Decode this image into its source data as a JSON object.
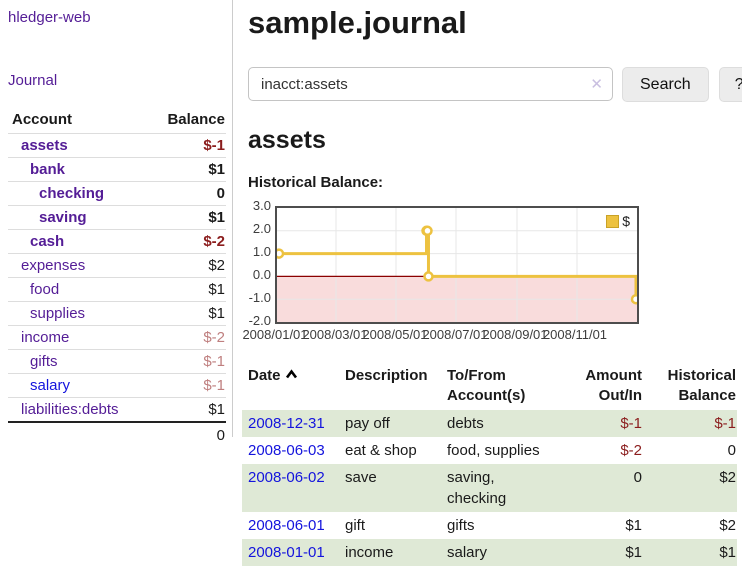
{
  "app": {
    "title": "hledger-web"
  },
  "sidebar": {
    "journal_link": "Journal",
    "accounts_table": {
      "headers": {
        "account": "Account",
        "balance": "Balance"
      },
      "rows": [
        {
          "account": "assets",
          "balance": "$-1"
        },
        {
          "account": "bank",
          "balance": "$1"
        },
        {
          "account": "checking",
          "balance": "0"
        },
        {
          "account": "saving",
          "balance": "$1"
        },
        {
          "account": "cash",
          "balance": "$-2"
        },
        {
          "account": "expenses",
          "balance": "$2"
        },
        {
          "account": "food",
          "balance": "$1"
        },
        {
          "account": "supplies",
          "balance": "$1"
        },
        {
          "account": "income",
          "balance": "$-2"
        },
        {
          "account": "gifts",
          "balance": "$-1"
        },
        {
          "account": "salary",
          "balance": "$-1"
        },
        {
          "account": "liabilities:debts",
          "balance": "$1"
        }
      ],
      "total": "0"
    }
  },
  "main": {
    "title": "sample.journal",
    "search": {
      "value": "inacct:assets",
      "clear_icon": "✕",
      "submit_label": "Search",
      "help_label": "?"
    },
    "section_heading": "assets",
    "chart_title": "Historical Balance:"
  },
  "chart_data": {
    "type": "line",
    "step": true,
    "title": "Historical Balance:",
    "series": [
      {
        "name": "$",
        "color": "#edc240",
        "points": [
          [
            "2008-01-01",
            1
          ],
          [
            "2008-06-01",
            2
          ],
          [
            "2008-06-02",
            2
          ],
          [
            "2008-06-03",
            0
          ],
          [
            "2008-12-31",
            -1
          ]
        ]
      }
    ],
    "xlim": [
      "2008-01-01",
      "2009-01-01"
    ],
    "ylim": [
      -2,
      3
    ],
    "yticks": [
      "3.0",
      "2.0",
      "1.0",
      "0.0",
      "-1.0",
      "-2.0"
    ],
    "xticks": [
      "2008/01/01",
      "2008/03/01",
      "2008/05/01",
      "2008/07/01",
      "2008/09/01",
      "2008/11/01"
    ],
    "grid": true,
    "legend_position": "top-right",
    "legend_label": "$",
    "negative_band_color": "#f9dcdc",
    "zero_line_color": "#8b0000"
  },
  "register": {
    "headers": {
      "date": "Date",
      "description": "Description",
      "account": "To/From Account(s)",
      "amount": "Amount Out/In",
      "balance": "Historical Balance"
    },
    "rows": [
      {
        "date": "2008-12-31",
        "description": "pay off",
        "accounts": "debts",
        "amount": "$-1",
        "balance": "$-1"
      },
      {
        "date": "2008-06-03",
        "description": "eat & shop",
        "accounts": "food, supplies",
        "amount": "$-2",
        "balance": "0"
      },
      {
        "date": "2008-06-02",
        "description": "save",
        "accounts": "saving, checking",
        "amount": "0",
        "balance": "$2"
      },
      {
        "date": "2008-06-01",
        "description": "gift",
        "accounts": "gifts",
        "amount": "$1",
        "balance": "$2"
      },
      {
        "date": "2008-01-01",
        "description": "income",
        "accounts": "salary",
        "amount": "$1",
        "balance": "$1"
      }
    ]
  }
}
